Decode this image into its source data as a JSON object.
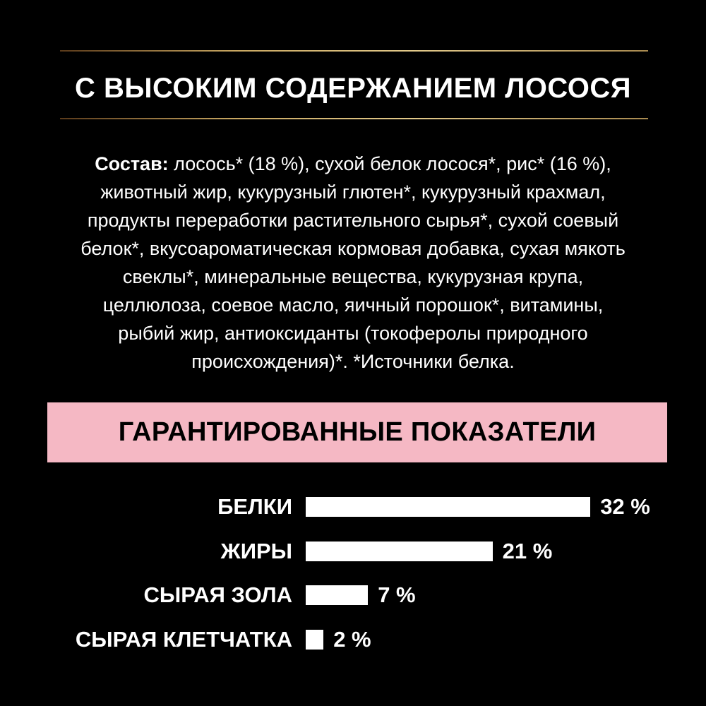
{
  "title": "С ВЫСОКИМ СОДЕРЖАНИЕМ ЛОСОСЯ",
  "composition": {
    "label": "Состав:",
    "lines": [
      " лосось* (18 %), сухой белок лосося*, рис* (16 %),",
      "животный жир, кукурузный глютен*, кукурузный крахмал,",
      "продукты переработки растительного сырья*, сухой соевый",
      "белок*, вкусоароматическая кормовая добавка, сухая мякоть",
      "свеклы*, минеральные вещества, кукурузная крупа,",
      "целлюлоза, соевое масло, яичный порошок*, витамины,",
      "рыбий жир, антиоксиданты (токоферолы природного",
      "происхождения)*. *Источники белка."
    ]
  },
  "guaranteed": {
    "heading": "ГАРАНТИРОВАННЫЕ ПОКАЗАТЕЛИ",
    "accent_color": "#f5b8c4",
    "items": [
      {
        "label": "БЕЛКИ",
        "value": 32,
        "text": "32 %"
      },
      {
        "label": "ЖИРЫ",
        "value": 21,
        "text": "21 %"
      },
      {
        "label": "СЫРАЯ ЗОЛА",
        "value": 7,
        "text": "7 %"
      },
      {
        "label": "СЫРАЯ КЛЕТЧАТКА",
        "value": 2,
        "text": "2 %"
      }
    ]
  }
}
